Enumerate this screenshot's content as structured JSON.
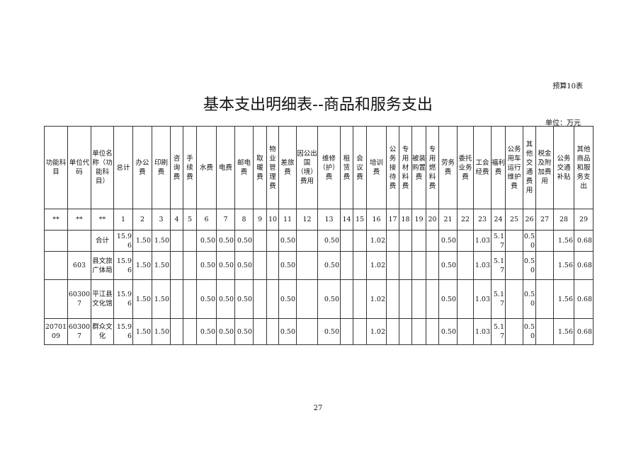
{
  "budget_label": "预算10表",
  "title": "基本支出明细表--商品和服务支出",
  "unit": "单位：万元",
  "headers": [
    "功能科目",
    "单位代码",
    "单位名称（功能科目）",
    "总计",
    "办公费",
    "印刷费",
    "咨询费",
    "手续费",
    "水费",
    "电费",
    "邮电费",
    "取暖费",
    "物业管理费",
    "差旅费",
    "因公出国（境）费用",
    "维修（护）费",
    "租赁费",
    "会议费",
    "培训费",
    "公务接待费",
    "专用材料费",
    "被装购置费",
    "专用燃料费",
    "劳务费",
    "委托业务费",
    "工会经费",
    "福利费",
    "公务用车运行维护费",
    "其他交通费用",
    "税金及附加费用",
    "公务交通补贴",
    "其他商品和服务支出"
  ],
  "numbers": [
    "**",
    "**",
    "**",
    "1",
    "2",
    "3",
    "4",
    "5",
    "6",
    "7",
    "8",
    "9",
    "10",
    "11",
    "12",
    "13",
    "14",
    "15",
    "16",
    "17",
    "18",
    "19",
    "20",
    "21",
    "22",
    "23",
    "24",
    "25",
    "26",
    "27",
    "28",
    "29"
  ],
  "rows": [
    [
      "",
      "",
      "合计",
      "15.96",
      "1.50",
      "1.50",
      "",
      "",
      "0.50",
      "0.50",
      "0.50",
      "",
      "",
      "0.50",
      "",
      "0.50",
      "",
      "",
      "1.02",
      "",
      "",
      "",
      "",
      "0.50",
      "",
      "1.03",
      "5.17",
      "",
      "0.50",
      "",
      "1.56",
      "0.68"
    ],
    [
      "",
      "603",
      "县文旅广体局",
      "15.96",
      "1.50",
      "1.50",
      "",
      "",
      "0.50",
      "0.50",
      "0.50",
      "",
      "",
      "0.50",
      "",
      "0.50",
      "",
      "",
      "1.02",
      "",
      "",
      "",
      "",
      "0.50",
      "",
      "1.03",
      "5.17",
      "",
      "0.50",
      "",
      "1.56",
      "0.68"
    ],
    [
      "",
      "603007",
      "平江县文化馆",
      "15.96",
      "1.50",
      "1.50",
      "",
      "",
      "0.50",
      "0.50",
      "0.50",
      "",
      "",
      "0.50",
      "",
      "0.50",
      "",
      "",
      "1.02",
      "",
      "",
      "",
      "",
      "0.50",
      "",
      "1.03",
      "5.17",
      "",
      "0.50",
      "",
      "1.56",
      "0.68"
    ],
    [
      "2070109",
      "603007",
      "群众文化",
      "15.96",
      "1.50",
      "1.50",
      "",
      "",
      "0.50",
      "0.50",
      "0.50",
      "",
      "",
      "0.50",
      "",
      "0.50",
      "",
      "",
      "1.02",
      "",
      "",
      "",
      "",
      "0.50",
      "",
      "1.03",
      "5.17",
      "",
      "0.50",
      "",
      "1.56",
      "0.68"
    ]
  ],
  "page_number": "27"
}
